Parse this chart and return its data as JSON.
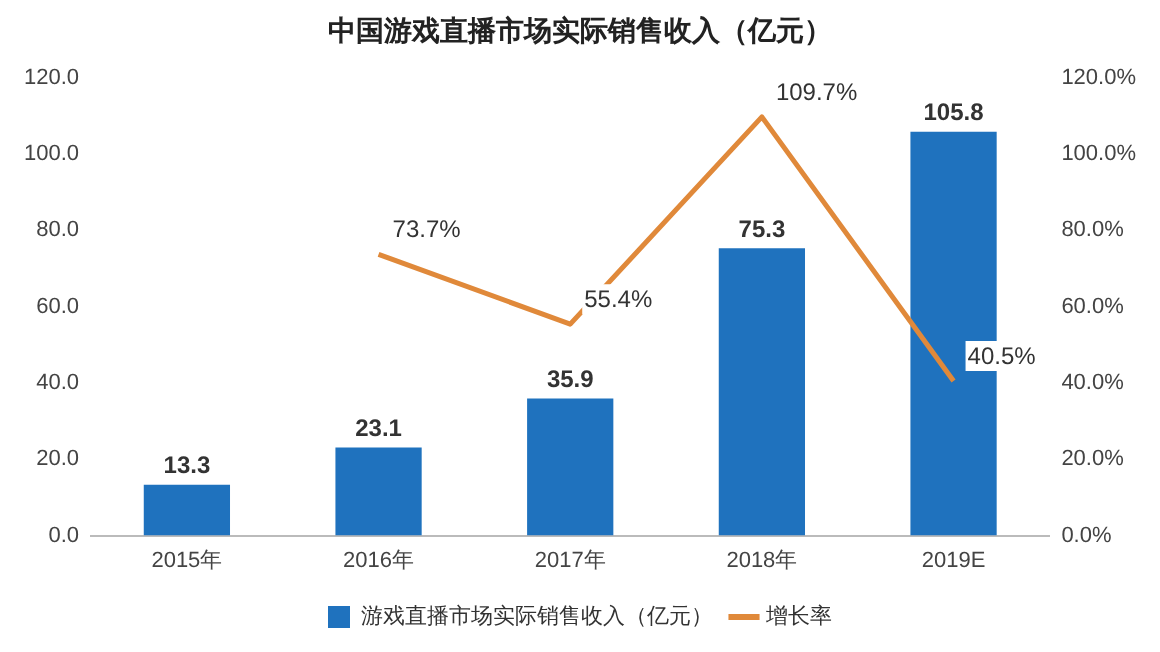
{
  "chart_data": {
    "type": "bar",
    "title": "中国游戏直播市场实际销售收入（亿元）",
    "categories": [
      "2015年",
      "2016年",
      "2017年",
      "2018年",
      "2019E"
    ],
    "series": [
      {
        "name": "游戏直播市场实际销售收入（亿元）",
        "color": "#1f72be",
        "values": [
          13.3,
          23.1,
          35.9,
          75.3,
          105.8
        ],
        "value_labels": [
          "13.3",
          "23.1",
          "35.9",
          "75.3",
          "105.8"
        ]
      },
      {
        "name": "增长率",
        "type": "line",
        "axis": "y2",
        "color": "#e0893a",
        "values": [
          null,
          73.7,
          55.4,
          109.7,
          40.5
        ],
        "value_labels": [
          null,
          "73.7%",
          "55.4%",
          "109.7%",
          "40.5%"
        ]
      }
    ],
    "ylim": [
      0,
      120
    ],
    "yticks": [
      {
        "value": 0,
        "label": "0.0"
      },
      {
        "value": 20,
        "label": "20.0"
      },
      {
        "value": 40,
        "label": "40.0"
      },
      {
        "value": 60,
        "label": "60.0"
      },
      {
        "value": 80,
        "label": "80.0"
      },
      {
        "value": 100,
        "label": "100.0"
      },
      {
        "value": 120,
        "label": "120.0"
      }
    ],
    "y2lim": [
      0,
      120
    ],
    "y2ticks": [
      {
        "value": 0,
        "label": "0.0%"
      },
      {
        "value": 20,
        "label": "20.0%"
      },
      {
        "value": 40,
        "label": "40.0%"
      },
      {
        "value": 60,
        "label": "60.0%"
      },
      {
        "value": 80,
        "label": "80.0%"
      },
      {
        "value": 100,
        "label": "100.0%"
      },
      {
        "value": 120,
        "label": "120.0%"
      }
    ],
    "grid": false,
    "legend": "bottom",
    "marker": "none"
  }
}
